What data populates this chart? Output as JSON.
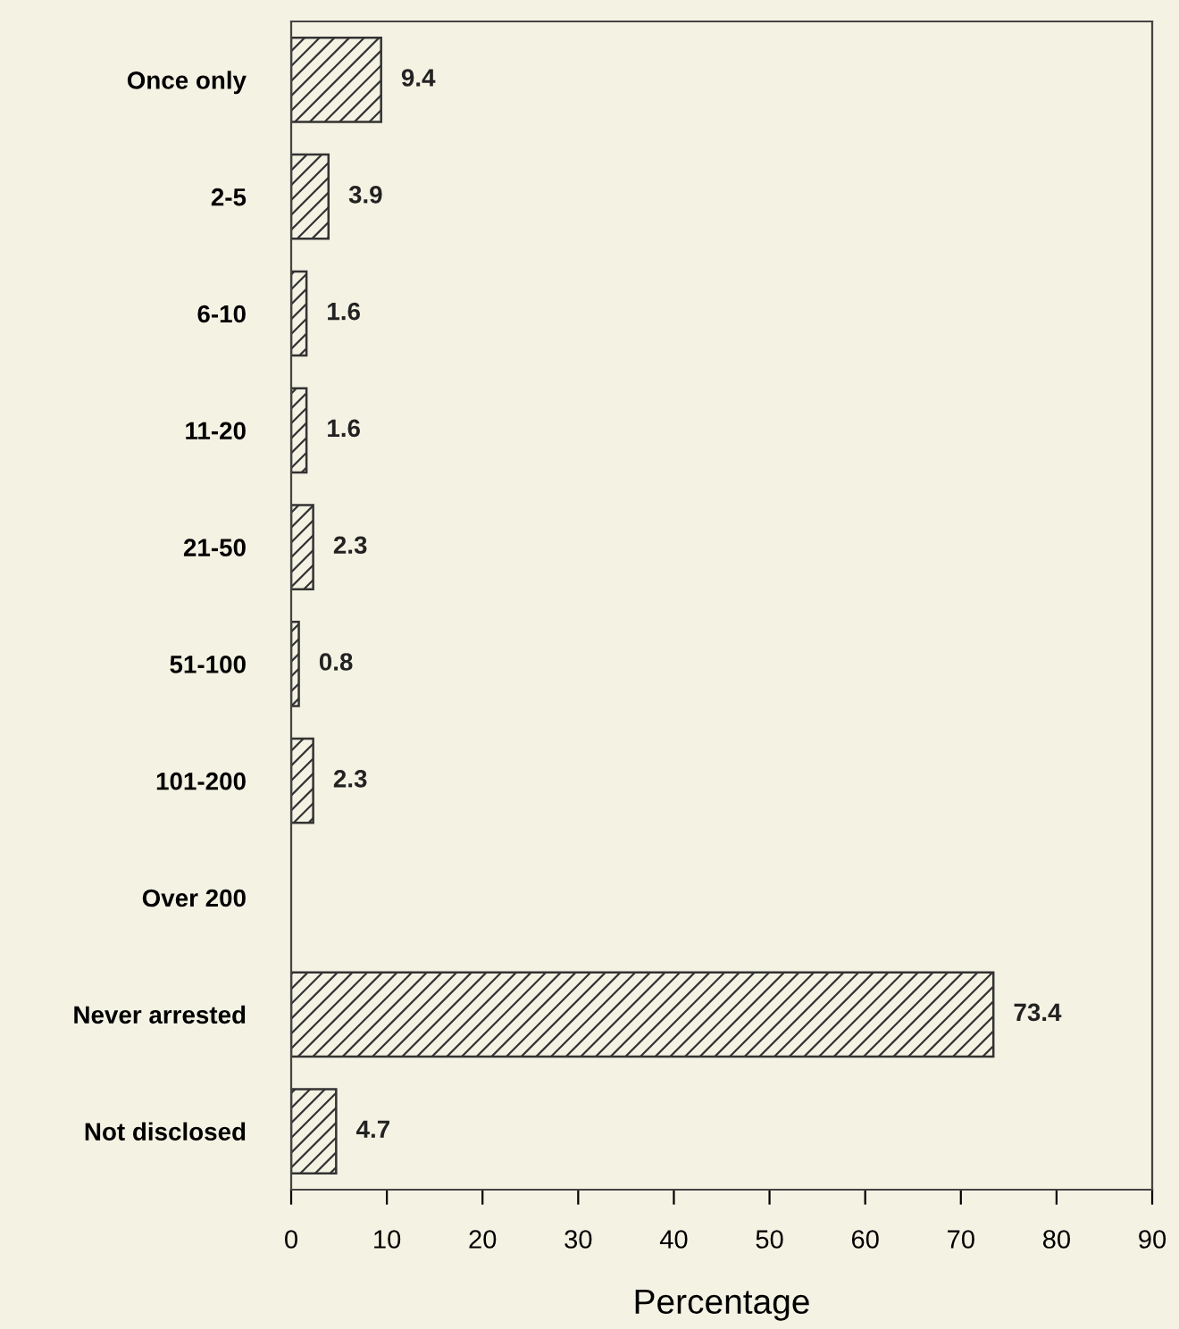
{
  "chart_data": {
    "type": "bar",
    "orientation": "horizontal",
    "xlabel": "Percentage",
    "categories": [
      "Once only",
      "2-5",
      "6-10",
      "11-20",
      "21-50",
      "51-100",
      "101-200",
      "Over 200",
      "Never arrested",
      "Not disclosed"
    ],
    "values": [
      9.4,
      3.9,
      1.6,
      1.6,
      2.3,
      0.8,
      2.3,
      null,
      73.4,
      4.7
    ],
    "value_labels": [
      "9.4",
      "3.9",
      "1.6",
      "1.6",
      "2.3",
      "0.8",
      "2.3",
      null,
      "73.4",
      "4.7"
    ],
    "color": "#333333",
    "xlim": [
      0,
      90
    ],
    "xticks": [
      0,
      10,
      20,
      30,
      40,
      50,
      60,
      70,
      80,
      90
    ],
    "grid": false,
    "legend": false
  }
}
